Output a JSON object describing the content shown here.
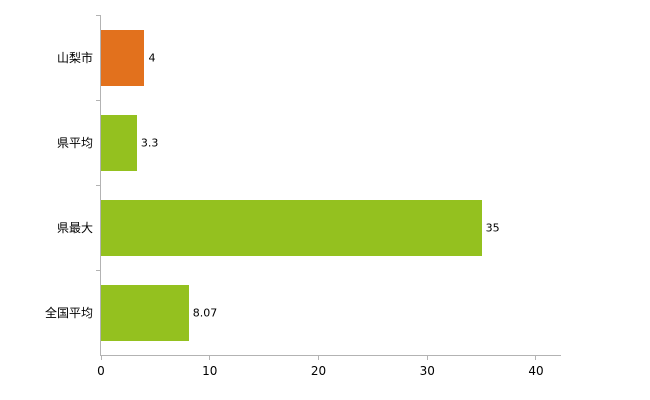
{
  "chart_data": {
    "type": "bar",
    "orientation": "horizontal",
    "title": "",
    "xlabel": "",
    "ylabel": "",
    "categories": [
      "山梨市",
      "県平均",
      "県最大",
      "全国平均"
    ],
    "values": [
      4,
      3.3,
      35,
      8.07
    ],
    "value_labels": [
      "4",
      "3.3",
      "35",
      "8.07"
    ],
    "bar_colors": [
      "#e2711d",
      "#94c11f",
      "#94c11f",
      "#94c11f"
    ],
    "x_ticks": [
      0,
      10,
      20,
      30,
      40
    ],
    "x_tick_labels": [
      "0",
      "10",
      "20",
      "30",
      "40"
    ],
    "xlim": [
      0,
      42.3
    ],
    "grid": false,
    "legend": "none",
    "axis_color": "#b3b3b3",
    "text_color": "#000000",
    "background_color": "#ffffff"
  }
}
